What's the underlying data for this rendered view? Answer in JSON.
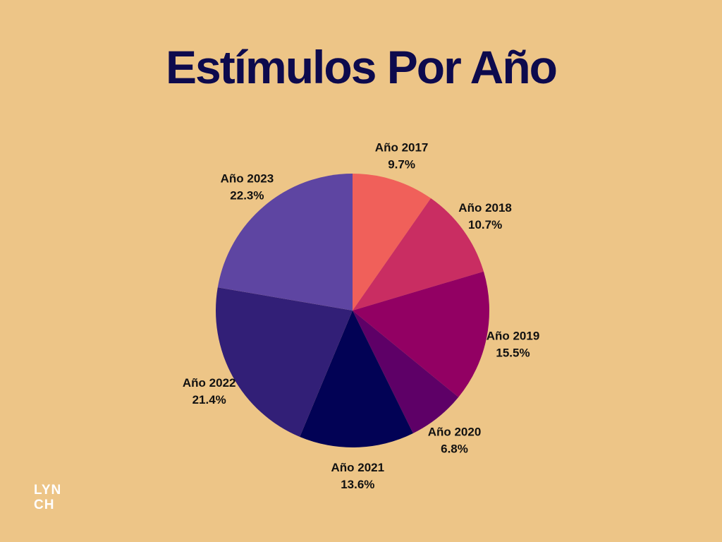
{
  "chart_data": {
    "type": "pie",
    "title": "Estímulos Por Año",
    "slices": [
      {
        "label": "Año 2017",
        "value": 9.7,
        "value_label": "9.7%",
        "color": "#F0605A"
      },
      {
        "label": "Año 2018",
        "value": 10.7,
        "value_label": "10.7%",
        "color": "#C92D62"
      },
      {
        "label": "Año 2019",
        "value": 15.5,
        "value_label": "15.5%",
        "color": "#920063"
      },
      {
        "label": "Año 2020",
        "value": 6.8,
        "value_label": "6.8%",
        "color": "#5E0067"
      },
      {
        "label": "Año 2021",
        "value": 13.6,
        "value_label": "13.6%",
        "color": "#020255"
      },
      {
        "label": "Año 2022",
        "value": 21.4,
        "value_label": "21.4%",
        "color": "#321F77"
      },
      {
        "label": "Año 2023",
        "value": 22.3,
        "value_label": "22.3%",
        "color": "#5E45A2"
      }
    ],
    "start": "12 o'clock",
    "direction": "clockwise",
    "legend": "none (labels outside slices)"
  },
  "logo": {
    "line1": "LYN",
    "line2": "CH"
  }
}
